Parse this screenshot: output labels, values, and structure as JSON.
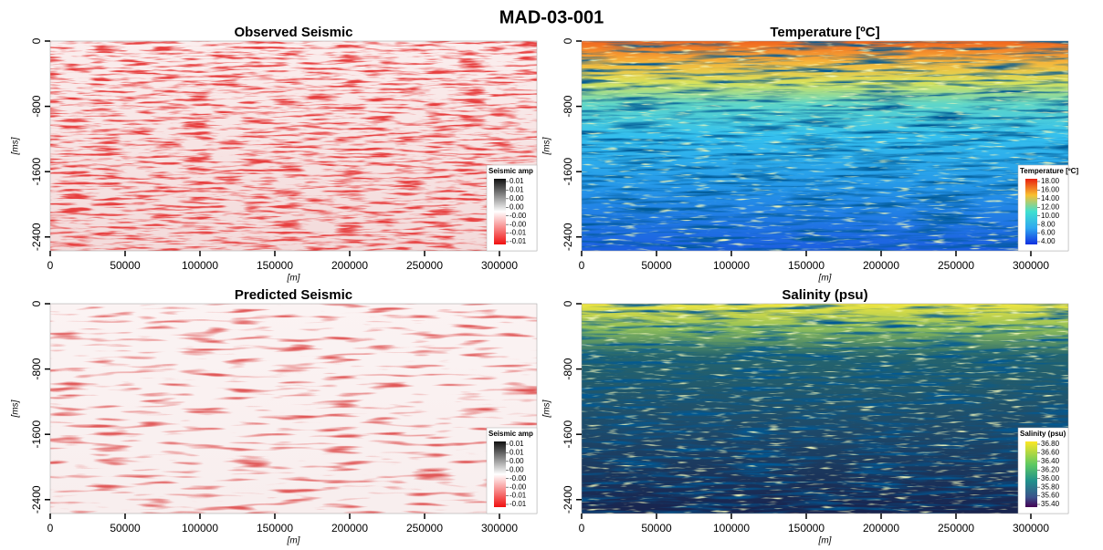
{
  "figure": {
    "title": "MAD-03-001",
    "panels": [
      {
        "title": "Observed Seismic",
        "xlabel": "[m]",
        "ylabel": "[ms]",
        "xlim": [
          0,
          325000
        ],
        "xticks": [
          0,
          50000,
          100000,
          150000,
          200000,
          250000,
          300000
        ],
        "ylim": [
          0,
          -2570
        ],
        "yticks": [
          0,
          -800,
          -1600,
          -2400
        ],
        "colorbar": {
          "title": "Seismic amp",
          "labels": [
            "0.01",
            "0.01",
            "0.00",
            "0.00",
            "-0.00",
            "-0.00",
            "-0.01",
            "-0.01"
          ]
        }
      },
      {
        "title": "Temperature [ºC]",
        "xlabel": "[m]",
        "ylabel": "[ms]",
        "xlim": [
          0,
          325000
        ],
        "xticks": [
          0,
          50000,
          100000,
          150000,
          200000,
          250000,
          300000
        ],
        "ylim": [
          0,
          -2570
        ],
        "yticks": [
          0,
          -800,
          -1600,
          -2400
        ],
        "colorbar": {
          "title": "Temperature [ºC]",
          "labels": [
            "18.00",
            "16.00",
            "14.00",
            "12.00",
            "10.00",
            "8.00",
            "6.00",
            "4.00"
          ]
        }
      },
      {
        "title": "Predicted Seismic",
        "xlabel": "[m]",
        "ylabel": "[ms]",
        "xlim": [
          0,
          325000
        ],
        "xticks": [
          0,
          50000,
          100000,
          150000,
          200000,
          250000,
          300000
        ],
        "ylim": [
          0,
          -2570
        ],
        "yticks": [
          0,
          -800,
          -1600,
          -2400
        ],
        "colorbar": {
          "title": "Seismic amp",
          "labels": [
            "0.01",
            "0.01",
            "0.00",
            "0.00",
            "-0.00",
            "-0.00",
            "-0.01",
            "-0.01"
          ]
        }
      },
      {
        "title": "Salinity (psu)",
        "xlabel": "[m]",
        "ylabel": "[ms]",
        "xlim": [
          0,
          325000
        ],
        "xticks": [
          0,
          50000,
          100000,
          150000,
          200000,
          250000,
          300000
        ],
        "ylim": [
          0,
          -2570
        ],
        "yticks": [
          0,
          -800,
          -1600,
          -2400
        ],
        "colorbar": {
          "title": "Salinity (psu)",
          "labels": [
            "36.80",
            "36.60",
            "36.40",
            "36.20",
            "36.00",
            "35.80",
            "35.60",
            "35.40"
          ]
        }
      }
    ]
  }
}
